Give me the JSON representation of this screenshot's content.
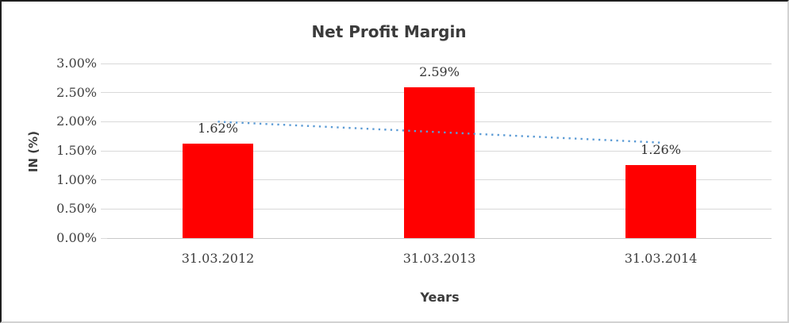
{
  "frame": {
    "background": "#ffffff",
    "border_dark": "#1f1f1f",
    "border_light": "#d2d2d2"
  },
  "chart_data": {
    "type": "bar",
    "title": "Net Profit Margin",
    "xlabel": "Years",
    "ylabel": "IN (%)",
    "categories": [
      "31.03.2012",
      "31.03.2013",
      "31.03.2014"
    ],
    "values": [
      1.62,
      2.59,
      1.26
    ],
    "data_labels": [
      "1.62%",
      "2.59%",
      "1.26%"
    ],
    "bar_color": "#ff0000",
    "y_ticks": [
      "3.00%",
      "2.50%",
      "2.00%",
      "1.50%",
      "1.00%",
      "0.50%",
      "0.00%"
    ],
    "y_tick_values": [
      3.0,
      2.5,
      2.0,
      1.5,
      1.0,
      0.5,
      0.0
    ],
    "ylim": [
      0,
      3.0
    ],
    "grid": true,
    "gridline_color": "#d9d9d9",
    "text_color": "#3f3f3f",
    "legend": "none",
    "trendline": {
      "type": "linear",
      "style": "dotted",
      "color": "#5b9bd5",
      "start_value": 2.0,
      "end_value": 1.64
    }
  }
}
